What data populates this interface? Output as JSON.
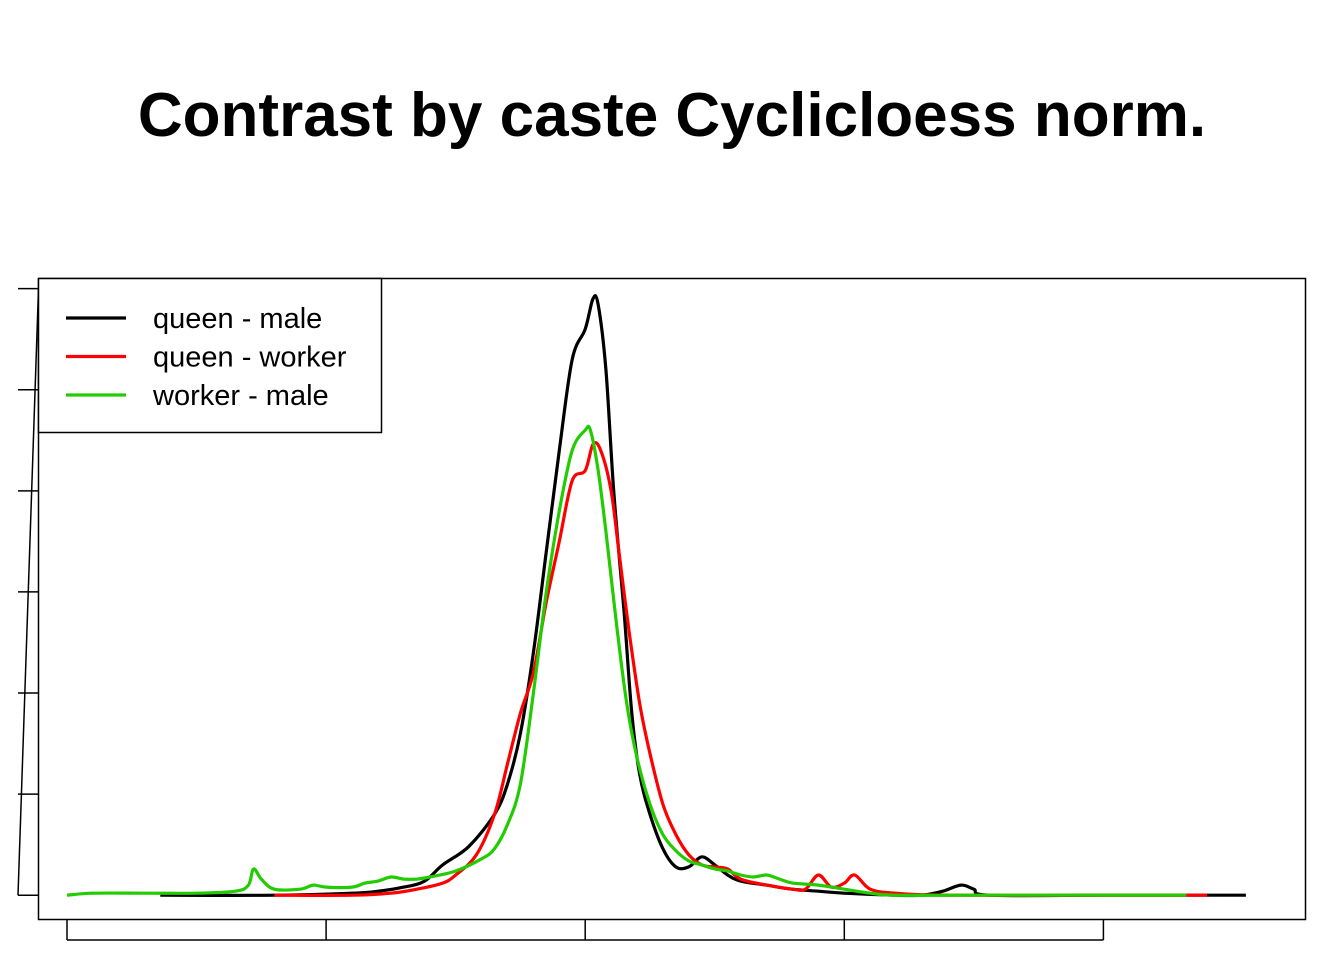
{
  "chart_data": {
    "type": "line",
    "title": "Contrast by caste Cyclicloess norm.",
    "xlabel": "",
    "ylabel": "",
    "xlim": [
      -2.11,
      2.78
    ],
    "ylim": [
      -0.12,
      3.05
    ],
    "x_ticks": [
      -2,
      -1,
      0,
      1,
      2
    ],
    "y_ticks": [
      0,
      0.5,
      1,
      1.5,
      2,
      2.5,
      3
    ],
    "tick_labels_shown": false,
    "grid": false,
    "legend_position": "top-left",
    "series": [
      {
        "name": "queen - male",
        "color": "#000000",
        "points": [
          [
            -1.64,
            0
          ],
          [
            -1.2,
            0.0
          ],
          [
            -0.9,
            0.01
          ],
          [
            -0.8,
            0.02
          ],
          [
            -0.7,
            0.04
          ],
          [
            -0.62,
            0.07
          ],
          [
            -0.55,
            0.15
          ],
          [
            -0.45,
            0.24
          ],
          [
            -0.35,
            0.4
          ],
          [
            -0.3,
            0.55
          ],
          [
            -0.25,
            0.8
          ],
          [
            -0.2,
            1.2
          ],
          [
            -0.15,
            1.7
          ],
          [
            -0.1,
            2.2
          ],
          [
            -0.05,
            2.65
          ],
          [
            0.0,
            2.8
          ],
          [
            0.03,
            2.95
          ],
          [
            0.05,
            2.92
          ],
          [
            0.08,
            2.6
          ],
          [
            0.11,
            2.0
          ],
          [
            0.15,
            1.4
          ],
          [
            0.18,
            0.9
          ],
          [
            0.21,
            0.6
          ],
          [
            0.25,
            0.4
          ],
          [
            0.3,
            0.23
          ],
          [
            0.35,
            0.14
          ],
          [
            0.4,
            0.14
          ],
          [
            0.45,
            0.19
          ],
          [
            0.5,
            0.15
          ],
          [
            0.55,
            0.1
          ],
          [
            0.6,
            0.07
          ],
          [
            0.7,
            0.05
          ],
          [
            0.8,
            0.03
          ],
          [
            0.9,
            0.02
          ],
          [
            1.0,
            0.01
          ],
          [
            1.2,
            0.0
          ],
          [
            1.3,
            0.0
          ],
          [
            1.38,
            0.02
          ],
          [
            1.45,
            0.05
          ],
          [
            1.5,
            0.03
          ],
          [
            1.56,
            0.0
          ],
          [
            2.0,
            0.0
          ],
          [
            2.4,
            0.0
          ],
          [
            2.55,
            0.0
          ]
        ]
      },
      {
        "name": "queen - worker",
        "color": "#ff0000",
        "points": [
          [
            -1.2,
            0.0
          ],
          [
            -0.9,
            0.0
          ],
          [
            -0.75,
            0.01
          ],
          [
            -0.65,
            0.03
          ],
          [
            -0.55,
            0.06
          ],
          [
            -0.5,
            0.1
          ],
          [
            -0.42,
            0.2
          ],
          [
            -0.35,
            0.4
          ],
          [
            -0.3,
            0.65
          ],
          [
            -0.25,
            0.9
          ],
          [
            -0.2,
            1.1
          ],
          [
            -0.15,
            1.45
          ],
          [
            -0.1,
            1.75
          ],
          [
            -0.05,
            2.05
          ],
          [
            0.0,
            2.1
          ],
          [
            0.03,
            2.23
          ],
          [
            0.06,
            2.2
          ],
          [
            0.1,
            2.0
          ],
          [
            0.13,
            1.7
          ],
          [
            0.17,
            1.3
          ],
          [
            0.21,
            0.95
          ],
          [
            0.25,
            0.7
          ],
          [
            0.3,
            0.45
          ],
          [
            0.35,
            0.3
          ],
          [
            0.4,
            0.2
          ],
          [
            0.45,
            0.15
          ],
          [
            0.5,
            0.14
          ],
          [
            0.55,
            0.13
          ],
          [
            0.6,
            0.08
          ],
          [
            0.7,
            0.05
          ],
          [
            0.8,
            0.03
          ],
          [
            0.85,
            0.03
          ],
          [
            0.9,
            0.1
          ],
          [
            0.95,
            0.04
          ],
          [
            1.0,
            0.06
          ],
          [
            1.04,
            0.1
          ],
          [
            1.1,
            0.03
          ],
          [
            1.2,
            0.01
          ],
          [
            1.4,
            0.0
          ],
          [
            2.0,
            0.0
          ],
          [
            2.4,
            0.0
          ]
        ]
      },
      {
        "name": "worker - male",
        "color": "#22cc00",
        "points": [
          [
            -2.0,
            0.0
          ],
          [
            -1.9,
            0.01
          ],
          [
            -1.7,
            0.01
          ],
          [
            -1.5,
            0.01
          ],
          [
            -1.35,
            0.02
          ],
          [
            -1.3,
            0.05
          ],
          [
            -1.28,
            0.13
          ],
          [
            -1.25,
            0.08
          ],
          [
            -1.2,
            0.03
          ],
          [
            -1.1,
            0.03
          ],
          [
            -1.05,
            0.05
          ],
          [
            -1.0,
            0.04
          ],
          [
            -0.9,
            0.04
          ],
          [
            -0.85,
            0.06
          ],
          [
            -0.8,
            0.07
          ],
          [
            -0.75,
            0.09
          ],
          [
            -0.7,
            0.08
          ],
          [
            -0.65,
            0.08
          ],
          [
            -0.6,
            0.09
          ],
          [
            -0.5,
            0.12
          ],
          [
            -0.4,
            0.18
          ],
          [
            -0.35,
            0.23
          ],
          [
            -0.3,
            0.35
          ],
          [
            -0.25,
            0.55
          ],
          [
            -0.2,
            1.0
          ],
          [
            -0.15,
            1.5
          ],
          [
            -0.1,
            1.9
          ],
          [
            -0.05,
            2.2
          ],
          [
            0.0,
            2.3
          ],
          [
            0.02,
            2.3
          ],
          [
            0.05,
            2.1
          ],
          [
            0.08,
            1.8
          ],
          [
            0.12,
            1.35
          ],
          [
            0.16,
            0.95
          ],
          [
            0.2,
            0.68
          ],
          [
            0.25,
            0.45
          ],
          [
            0.3,
            0.3
          ],
          [
            0.35,
            0.22
          ],
          [
            0.4,
            0.17
          ],
          [
            0.45,
            0.15
          ],
          [
            0.5,
            0.13
          ],
          [
            0.55,
            0.12
          ],
          [
            0.6,
            0.1
          ],
          [
            0.65,
            0.09
          ],
          [
            0.7,
            0.1
          ],
          [
            0.75,
            0.08
          ],
          [
            0.8,
            0.06
          ],
          [
            0.9,
            0.05
          ],
          [
            1.0,
            0.03
          ],
          [
            1.1,
            0.01
          ],
          [
            1.2,
            0.0
          ],
          [
            1.5,
            0.0
          ],
          [
            2.0,
            0.0
          ],
          [
            2.32,
            0.0
          ]
        ]
      }
    ]
  }
}
